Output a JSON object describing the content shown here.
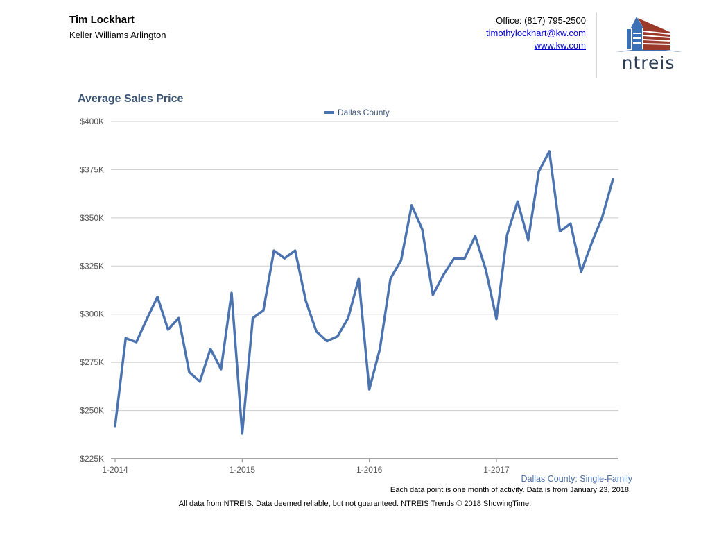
{
  "agent": {
    "name": "Tim Lockhart",
    "company": "Keller Williams Arlington"
  },
  "contact": {
    "office": "Office: (817) 795-2500",
    "email": "timothylockhart@kw.com",
    "website": "www.kw.com"
  },
  "logo": {
    "text": "ntreis",
    "colors": {
      "blue": "#3b6fb6",
      "red": "#9b3a2a",
      "dark": "#2d3e57"
    }
  },
  "chart_data": {
    "type": "line",
    "title": "Average Sales Price",
    "xlabel": "",
    "ylabel": "",
    "ylim": [
      225000,
      400000
    ],
    "yticks": [
      225000,
      250000,
      275000,
      300000,
      325000,
      350000,
      375000,
      400000
    ],
    "ytick_labels": [
      "$225K",
      "$250K",
      "$275K",
      "$300K",
      "$325K",
      "$350K",
      "$375K",
      "$400K"
    ],
    "xticks": [
      "1-2014",
      "1-2015",
      "1-2016",
      "1-2017"
    ],
    "grid": true,
    "legend_position": "top-center",
    "series": [
      {
        "name": "Dallas County",
        "color": "#4a73b0",
        "values": [
          242000,
          287500,
          285500,
          297500,
          309000,
          292000,
          298000,
          270000,
          265000,
          282000,
          271500,
          311000,
          238000,
          298000,
          302000,
          333000,
          329000,
          333000,
          307000,
          291000,
          286000,
          288500,
          298000,
          318500,
          261000,
          282000,
          318500,
          328000,
          356500,
          344000,
          310000,
          320500,
          329000,
          329000,
          340500,
          323000,
          297500,
          341000,
          358500,
          338500,
          374000,
          384500,
          343000,
          347000,
          322000,
          337000,
          350500,
          370000
        ]
      }
    ]
  },
  "notes": {
    "area_label": "Dallas County: Single-Family",
    "data_note": "Each data point is one month of activity. Data is from January 23, 2018.",
    "footer": "All data from NTREIS. Data deemed reliable, but not guaranteed. NTREIS Trends © 2018 ShowingTime."
  }
}
